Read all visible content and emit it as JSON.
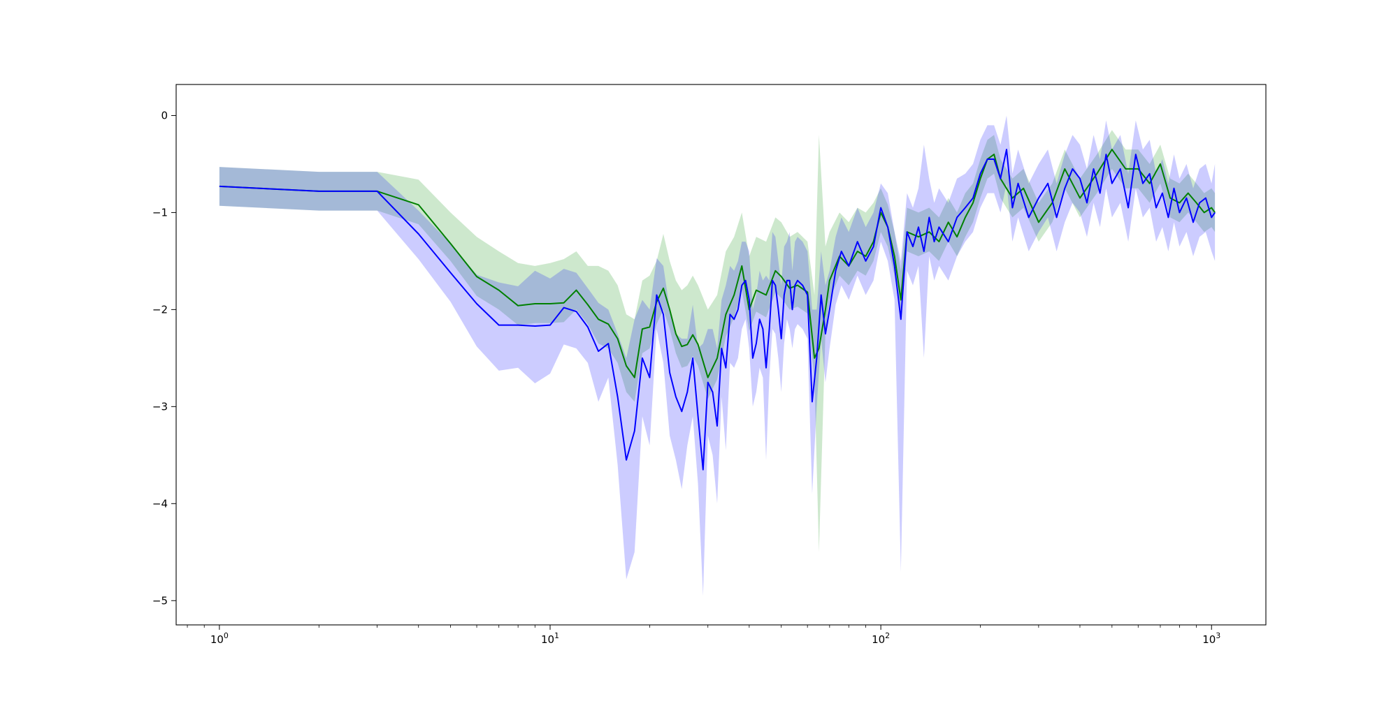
{
  "chart_data": {
    "type": "line",
    "title": "",
    "xlabel": "",
    "ylabel": "",
    "x_scale": "log",
    "xlim": [
      0.74,
      1460
    ],
    "ylim": [
      -5.25,
      0.32
    ],
    "grid": false,
    "legend": "none",
    "x_ticks": [
      {
        "value": 1,
        "base": "10",
        "exp": "0"
      },
      {
        "value": 10,
        "base": "10",
        "exp": "1"
      },
      {
        "value": 100,
        "base": "10",
        "exp": "2"
      },
      {
        "value": 1000,
        "base": "10",
        "exp": "3"
      }
    ],
    "y_ticks": [
      {
        "value": 0,
        "label": "0"
      },
      {
        "value": -1,
        "label": "−1"
      },
      {
        "value": -2,
        "label": "−2"
      },
      {
        "value": -3,
        "label": "−3"
      },
      {
        "value": -4,
        "label": "−4"
      },
      {
        "value": -5,
        "label": "−5"
      }
    ],
    "series": [
      {
        "color": "#008000",
        "band_color": "#2ca02c",
        "band_opacity": 0.24,
        "x": [
          1,
          2,
          3,
          4,
          5,
          6,
          7,
          8,
          9,
          10,
          11,
          12,
          13,
          14,
          15,
          16,
          17,
          18,
          19,
          20,
          21,
          22,
          23,
          24,
          25,
          26,
          27,
          28,
          30,
          32,
          34,
          36,
          38,
          40,
          42,
          45,
          48,
          50,
          53,
          56,
          60,
          63,
          65,
          68,
          70,
          75,
          80,
          85,
          90,
          95,
          100,
          105,
          110,
          115,
          120,
          130,
          140,
          150,
          160,
          170,
          180,
          190,
          200,
          210,
          220,
          230,
          250,
          270,
          300,
          330,
          360,
          400,
          450,
          500,
          550,
          600,
          650,
          700,
          750,
          800,
          850,
          900,
          950,
          1000,
          1024
        ],
        "y": [
          -0.73,
          -0.78,
          -0.78,
          -0.92,
          -1.32,
          -1.66,
          -1.8,
          -1.96,
          -1.94,
          -1.94,
          -1.93,
          -1.8,
          -1.95,
          -2.1,
          -2.15,
          -2.3,
          -2.58,
          -2.7,
          -2.2,
          -2.18,
          -1.92,
          -1.78,
          -2.0,
          -2.25,
          -2.38,
          -2.36,
          -2.26,
          -2.36,
          -2.7,
          -2.5,
          -2.05,
          -1.85,
          -1.55,
          -2.0,
          -1.8,
          -1.85,
          -1.6,
          -1.66,
          -1.78,
          -1.75,
          -1.82,
          -2.5,
          -2.4,
          -2.0,
          -1.7,
          -1.45,
          -1.55,
          -1.4,
          -1.45,
          -1.3,
          -1.0,
          -1.15,
          -1.45,
          -1.9,
          -1.2,
          -1.25,
          -1.2,
          -1.3,
          -1.1,
          -1.25,
          -1.05,
          -0.9,
          -0.65,
          -0.45,
          -0.4,
          -0.65,
          -0.85,
          -0.75,
          -1.1,
          -0.9,
          -0.55,
          -0.85,
          -0.6,
          -0.35,
          -0.55,
          -0.55,
          -0.7,
          -0.5,
          -0.85,
          -0.9,
          -0.8,
          -0.9,
          -1.0,
          -0.95,
          -1.0
        ],
        "lower": [
          -0.93,
          -0.98,
          -0.98,
          -1.12,
          -1.5,
          -1.86,
          -2.0,
          -2.16,
          -2.14,
          -2.14,
          -2.13,
          -2.0,
          -2.15,
          -2.35,
          -2.4,
          -2.55,
          -2.85,
          -2.95,
          -2.45,
          -2.4,
          -2.15,
          -2.0,
          -2.2,
          -2.45,
          -2.6,
          -2.58,
          -2.48,
          -2.58,
          -2.92,
          -2.72,
          -2.28,
          -2.08,
          -1.8,
          -2.22,
          -2.02,
          -2.08,
          -1.82,
          -1.88,
          -2.0,
          -1.97,
          -2.04,
          -2.72,
          -4.5,
          -2.22,
          -1.9,
          -1.65,
          -1.75,
          -1.6,
          -1.65,
          -1.5,
          -1.2,
          -1.35,
          -1.65,
          -2.1,
          -1.4,
          -1.45,
          -1.4,
          -1.5,
          -1.3,
          -1.45,
          -1.25,
          -1.1,
          -0.85,
          -0.65,
          -0.6,
          -0.85,
          -1.05,
          -0.95,
          -1.3,
          -1.1,
          -0.75,
          -1.05,
          -0.8,
          -0.55,
          -0.75,
          -0.75,
          -0.9,
          -0.7,
          -1.05,
          -1.1,
          -1.0,
          -1.1,
          -1.2,
          -1.15,
          -1.2
        ],
        "upper": [
          -0.53,
          -0.58,
          -0.58,
          -0.66,
          -1.0,
          -1.25,
          -1.4,
          -1.52,
          -1.55,
          -1.52,
          -1.48,
          -1.4,
          -1.55,
          -1.55,
          -1.6,
          -1.75,
          -2.05,
          -2.1,
          -1.7,
          -1.65,
          -1.5,
          -1.22,
          -1.5,
          -1.7,
          -1.8,
          -1.75,
          -1.65,
          -1.75,
          -2.0,
          -1.85,
          -1.4,
          -1.25,
          -1.0,
          -1.45,
          -1.25,
          -1.3,
          -1.05,
          -1.1,
          -1.25,
          -1.2,
          -1.3,
          -1.85,
          -0.2,
          -1.35,
          -1.2,
          -1.0,
          -1.1,
          -0.95,
          -1.0,
          -0.9,
          -0.75,
          -0.92,
          -1.2,
          -1.6,
          -0.95,
          -1.0,
          -0.95,
          -1.05,
          -0.85,
          -1.0,
          -0.8,
          -0.7,
          -0.45,
          -0.25,
          -0.2,
          -0.45,
          -0.65,
          -0.55,
          -0.9,
          -0.7,
          -0.35,
          -0.65,
          -0.4,
          -0.15,
          -0.35,
          -0.35,
          -0.5,
          -0.3,
          -0.65,
          -0.7,
          -0.6,
          -0.7,
          -0.8,
          -0.75,
          -0.8
        ]
      },
      {
        "color": "#0000ff",
        "band_color": "#0000ff",
        "band_opacity": 0.2,
        "x": [
          1,
          2,
          3,
          4,
          5,
          6,
          7,
          8,
          9,
          10,
          11,
          12,
          13,
          14,
          15,
          16,
          17,
          18,
          19,
          20,
          21,
          22,
          23,
          24,
          25,
          26,
          27,
          28,
          29,
          30,
          31,
          32,
          33,
          34,
          35,
          36,
          37,
          38,
          39,
          40,
          41,
          42,
          43,
          44,
          45,
          46,
          47,
          48,
          49,
          50,
          51,
          52,
          53,
          54,
          55,
          56,
          58,
          60,
          62,
          64,
          66,
          68,
          70,
          73,
          76,
          80,
          85,
          90,
          95,
          100,
          105,
          110,
          115,
          120,
          125,
          130,
          135,
          140,
          145,
          150,
          160,
          170,
          180,
          190,
          200,
          210,
          220,
          230,
          240,
          250,
          260,
          280,
          300,
          320,
          340,
          360,
          380,
          400,
          420,
          440,
          460,
          480,
          500,
          530,
          560,
          590,
          620,
          650,
          680,
          710,
          740,
          770,
          800,
          840,
          880,
          920,
          960,
          1000,
          1024
        ],
        "y": [
          -0.73,
          -0.78,
          -0.78,
          -1.22,
          -1.62,
          -1.94,
          -2.16,
          -2.16,
          -2.17,
          -2.16,
          -1.98,
          -2.02,
          -2.18,
          -2.43,
          -2.35,
          -2.9,
          -3.55,
          -3.25,
          -2.5,
          -2.7,
          -1.85,
          -2.05,
          -2.65,
          -2.9,
          -3.05,
          -2.85,
          -2.5,
          -3.1,
          -3.65,
          -2.75,
          -2.85,
          -3.2,
          -2.4,
          -2.6,
          -2.05,
          -2.1,
          -2.0,
          -1.75,
          -1.7,
          -1.9,
          -2.5,
          -2.35,
          -2.1,
          -2.2,
          -2.6,
          -2.2,
          -1.7,
          -1.75,
          -2.0,
          -2.3,
          -1.85,
          -1.7,
          -1.7,
          -2.0,
          -1.75,
          -1.7,
          -1.75,
          -1.85,
          -2.95,
          -2.5,
          -1.85,
          -2.25,
          -2.0,
          -1.6,
          -1.4,
          -1.55,
          -1.3,
          -1.5,
          -1.35,
          -0.95,
          -1.15,
          -1.55,
          -2.1,
          -1.2,
          -1.35,
          -1.15,
          -1.4,
          -1.05,
          -1.3,
          -1.15,
          -1.3,
          -1.05,
          -0.95,
          -0.85,
          -0.6,
          -0.45,
          -0.45,
          -0.65,
          -0.35,
          -0.95,
          -0.7,
          -1.05,
          -0.85,
          -0.7,
          -1.05,
          -0.75,
          -0.55,
          -0.65,
          -0.9,
          -0.55,
          -0.8,
          -0.4,
          -0.7,
          -0.55,
          -0.95,
          -0.4,
          -0.7,
          -0.6,
          -0.95,
          -0.8,
          -1.05,
          -0.75,
          -1.0,
          -0.85,
          -1.1,
          -0.9,
          -0.85,
          -1.05,
          -1.0
        ],
        "lower": [
          -0.93,
          -0.98,
          -0.98,
          -1.48,
          -1.92,
          -2.38,
          -2.63,
          -2.6,
          -2.76,
          -2.66,
          -2.36,
          -2.4,
          -2.55,
          -2.95,
          -2.7,
          -3.6,
          -4.78,
          -4.5,
          -3.1,
          -3.4,
          -2.2,
          -2.55,
          -3.3,
          -3.55,
          -3.85,
          -3.4,
          -3.1,
          -3.8,
          -4.95,
          -3.3,
          -3.5,
          -4.0,
          -2.9,
          -3.45,
          -2.55,
          -2.6,
          -2.5,
          -2.2,
          -2.1,
          -2.4,
          -3.0,
          -2.85,
          -2.6,
          -2.7,
          -3.55,
          -2.7,
          -2.2,
          -2.25,
          -2.5,
          -2.85,
          -2.35,
          -2.1,
          -2.2,
          -2.4,
          -2.2,
          -2.15,
          -2.2,
          -2.3,
          -3.9,
          -3.0,
          -2.3,
          -2.75,
          -2.4,
          -1.95,
          -1.75,
          -1.9,
          -1.65,
          -1.85,
          -1.7,
          -1.3,
          -1.5,
          -1.9,
          -4.7,
          -1.6,
          -1.75,
          -1.55,
          -2.5,
          -1.45,
          -1.7,
          -1.55,
          -1.7,
          -1.45,
          -1.3,
          -1.2,
          -0.95,
          -0.8,
          -0.8,
          -1.0,
          -0.7,
          -1.3,
          -1.05,
          -1.4,
          -1.2,
          -1.05,
          -1.4,
          -1.1,
          -0.9,
          -1.0,
          -1.25,
          -0.9,
          -1.15,
          -0.75,
          -1.05,
          -0.9,
          -1.3,
          -0.75,
          -1.05,
          -0.95,
          -1.3,
          -1.15,
          -1.4,
          -1.1,
          -1.35,
          -1.2,
          -1.45,
          -1.25,
          -1.2,
          -1.4,
          -1.5
        ],
        "upper": [
          -0.53,
          -0.58,
          -0.58,
          -0.98,
          -1.32,
          -1.64,
          -1.72,
          -1.76,
          -1.6,
          -1.68,
          -1.58,
          -1.62,
          -1.78,
          -1.93,
          -2.0,
          -2.25,
          -2.5,
          -2.1,
          -1.9,
          -2.0,
          -1.47,
          -1.55,
          -2.0,
          -2.25,
          -2.3,
          -2.3,
          -1.95,
          -2.4,
          -2.35,
          -2.2,
          -2.2,
          -2.4,
          -1.9,
          -1.75,
          -1.55,
          -1.6,
          -1.5,
          -1.3,
          -1.3,
          -1.4,
          -2.0,
          -1.85,
          -1.6,
          -1.7,
          -1.65,
          -1.7,
          -1.2,
          -1.25,
          -1.5,
          -1.75,
          -1.35,
          -1.3,
          -1.2,
          -1.6,
          -1.3,
          -1.25,
          -1.3,
          -1.4,
          -2.0,
          -2.0,
          -1.4,
          -1.75,
          -1.6,
          -1.25,
          -1.05,
          -1.2,
          -0.95,
          -1.15,
          -1.0,
          -0.7,
          -0.8,
          -1.2,
          -1.5,
          -0.8,
          -0.95,
          -0.75,
          -0.3,
          -0.65,
          -0.9,
          -0.75,
          -0.9,
          -0.65,
          -0.6,
          -0.5,
          -0.25,
          -0.1,
          -0.1,
          -0.3,
          0.0,
          -0.6,
          -0.35,
          -0.7,
          -0.5,
          -0.35,
          -0.7,
          -0.4,
          -0.2,
          -0.3,
          -0.55,
          -0.2,
          -0.45,
          -0.05,
          -0.35,
          -0.2,
          -0.6,
          -0.05,
          -0.35,
          -0.25,
          -0.6,
          -0.45,
          -0.7,
          -0.4,
          -0.65,
          -0.5,
          -0.75,
          -0.55,
          -0.5,
          -0.7,
          -0.5
        ]
      }
    ]
  }
}
